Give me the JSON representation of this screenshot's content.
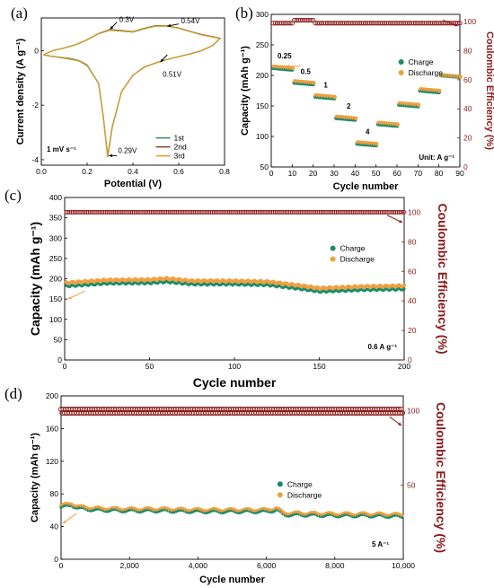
{
  "colors": {
    "ce": "#8b1a1a",
    "charge": "#1a8a6a",
    "discharge": "#f0a040",
    "cv1": "#3a8a5a",
    "cv2": "#8b3a2a",
    "cv3": "#d4a020"
  },
  "chart_data": [
    {
      "type": "line",
      "panel_label": "(a)",
      "xlabel": "Potential (V)",
      "ylabel": "Current density (A g⁻¹)",
      "xlim": [
        0.0,
        0.8
      ],
      "ylim": [
        -4.2,
        1.2
      ],
      "xticks": [
        "0.0",
        "0.2",
        "0.4",
        "0.6",
        "0.8"
      ],
      "yticks": [
        "-4",
        "-2",
        "0"
      ],
      "annotations": [
        "0.3V",
        "0.54V",
        "0.51V",
        "0.29V"
      ],
      "note": "1 mV s⁻¹",
      "series": [
        {
          "name": "1st",
          "x": [
            0.01,
            0.05,
            0.1,
            0.15,
            0.2,
            0.25,
            0.3,
            0.35,
            0.4,
            0.45,
            0.5,
            0.55,
            0.6,
            0.65,
            0.7,
            0.75,
            0.78,
            0.75,
            0.7,
            0.65,
            0.6,
            0.55,
            0.51,
            0.45,
            0.4,
            0.35,
            0.31,
            0.29,
            0.27,
            0.25,
            0.2,
            0.17,
            0.15,
            0.12,
            0.08,
            0.04,
            0.01
          ],
          "y": [
            -0.15,
            0.0,
            0.1,
            0.22,
            0.4,
            0.62,
            0.75,
            0.72,
            0.68,
            0.8,
            0.9,
            0.9,
            0.82,
            0.7,
            0.58,
            0.5,
            0.45,
            0.2,
            0.0,
            -0.12,
            -0.22,
            -0.32,
            -0.42,
            -0.6,
            -0.9,
            -1.5,
            -2.8,
            -3.9,
            -2.4,
            -1.2,
            -0.55,
            -0.4,
            -0.35,
            -0.3,
            -0.25,
            -0.2,
            -0.15
          ]
        },
        {
          "name": "2nd",
          "x": [
            0.01,
            0.05,
            0.1,
            0.15,
            0.2,
            0.25,
            0.3,
            0.35,
            0.4,
            0.45,
            0.5,
            0.55,
            0.6,
            0.65,
            0.7,
            0.75,
            0.78,
            0.75,
            0.7,
            0.65,
            0.6,
            0.55,
            0.51,
            0.45,
            0.4,
            0.35,
            0.31,
            0.29,
            0.27,
            0.25,
            0.2,
            0.17,
            0.15,
            0.12,
            0.08,
            0.04,
            0.01
          ],
          "y": [
            -0.15,
            0.0,
            0.1,
            0.22,
            0.4,
            0.63,
            0.78,
            0.74,
            0.7,
            0.82,
            0.92,
            0.91,
            0.83,
            0.71,
            0.59,
            0.51,
            0.46,
            0.2,
            0.0,
            -0.12,
            -0.22,
            -0.32,
            -0.42,
            -0.6,
            -0.9,
            -1.5,
            -2.8,
            -3.85,
            -2.4,
            -1.2,
            -0.52,
            -0.38,
            -0.33,
            -0.28,
            -0.24,
            -0.2,
            -0.15
          ]
        },
        {
          "name": "3rd",
          "x": [
            0.01,
            0.05,
            0.1,
            0.15,
            0.2,
            0.25,
            0.3,
            0.35,
            0.4,
            0.45,
            0.5,
            0.55,
            0.6,
            0.65,
            0.7,
            0.75,
            0.78,
            0.75,
            0.7,
            0.65,
            0.6,
            0.55,
            0.51,
            0.45,
            0.4,
            0.35,
            0.31,
            0.29,
            0.27,
            0.25,
            0.2,
            0.17,
            0.15,
            0.12,
            0.08,
            0.04,
            0.01
          ],
          "y": [
            -0.15,
            0.0,
            0.1,
            0.22,
            0.4,
            0.62,
            0.76,
            0.73,
            0.69,
            0.81,
            0.91,
            0.9,
            0.82,
            0.7,
            0.58,
            0.5,
            0.45,
            0.2,
            0.0,
            -0.12,
            -0.22,
            -0.32,
            -0.42,
            -0.6,
            -0.9,
            -1.5,
            -2.8,
            -3.88,
            -2.4,
            -1.2,
            -0.53,
            -0.39,
            -0.34,
            -0.29,
            -0.24,
            -0.2,
            -0.15
          ]
        }
      ]
    },
    {
      "type": "scatter",
      "panel_label": "(b)",
      "xlabel": "Cycle number",
      "ylabel": "Capacity (mAh g⁻¹)",
      "ylabel_right": "Coulombic Efficiency (%)",
      "xlim": [
        0,
        90
      ],
      "ylim": [
        50,
        300
      ],
      "ylim_right": [
        0,
        105
      ],
      "xticks": [
        "0",
        "10",
        "20",
        "30",
        "40",
        "50",
        "60",
        "70",
        "80",
        "90"
      ],
      "yticks": [
        "50",
        "100",
        "150",
        "200",
        "250",
        "300"
      ],
      "yticks_right": [
        "0",
        "20",
        "40",
        "60",
        "80",
        "100"
      ],
      "rate_labels": [
        "0.25",
        "0.5",
        "1",
        "2",
        "4"
      ],
      "note": "Unit: A g⁻¹",
      "legend": [
        "Charge",
        "Discharge"
      ],
      "groups": [
        {
          "x0": 1,
          "x1": 10,
          "charge": 212,
          "discharge": 213
        },
        {
          "x0": 11,
          "x1": 20,
          "charge": 188,
          "discharge": 189
        },
        {
          "x0": 21,
          "x1": 30,
          "charge": 165,
          "discharge": 166
        },
        {
          "x0": 31,
          "x1": 40,
          "charge": 130,
          "discharge": 131
        },
        {
          "x0": 41,
          "x1": 50,
          "charge": 88,
          "discharge": 89
        },
        {
          "x0": 51,
          "x1": 60,
          "charge": 120,
          "discharge": 121
        },
        {
          "x0": 61,
          "x1": 70,
          "charge": 152,
          "discharge": 153
        },
        {
          "x0": 71,
          "x1": 80,
          "charge": 175,
          "discharge": 176
        },
        {
          "x0": 81,
          "x1": 90,
          "charge": 200,
          "discharge": 199
        }
      ],
      "ce_value": 99
    },
    {
      "type": "scatter",
      "panel_label": "(c)",
      "xlabel": "Cycle number",
      "ylabel": "Capacity (mAh g⁻¹)",
      "ylabel_right": "Coulombic Efficiency (%)",
      "xlim": [
        0,
        200
      ],
      "ylim": [
        0,
        400
      ],
      "ylim_right": [
        0,
        110
      ],
      "xticks": [
        "0",
        "50",
        "100",
        "150",
        "200"
      ],
      "yticks": [
        "0",
        "50",
        "100",
        "150",
        "200",
        "250",
        "300",
        "350",
        "400"
      ],
      "yticks_right": [
        "0",
        "20",
        "40",
        "60",
        "80",
        "100"
      ],
      "note": "0.6 A g⁻¹",
      "legend": [
        "Charge",
        "Discharge"
      ],
      "capacity_x": [
        0,
        25,
        50,
        60,
        75,
        100,
        120,
        140,
        150,
        175,
        200
      ],
      "capacity_y": [
        185,
        192,
        193,
        196,
        190,
        190,
        188,
        178,
        172,
        176,
        178
      ],
      "ce_value": 100
    },
    {
      "type": "scatter",
      "panel_label": "(d)",
      "xlabel": "Cycle number",
      "ylabel": "Capacity (mAh g⁻¹)",
      "ylabel_right": "Coulombic Efficiency (%)",
      "xlim": [
        0,
        10000
      ],
      "ylim": [
        0,
        200
      ],
      "ylim_right": [
        0,
        110
      ],
      "xticks": [
        "0",
        "2,000",
        "4,000",
        "6,000",
        "8,000",
        "10,000"
      ],
      "yticks": [
        "0",
        "40",
        "80",
        "120",
        "160",
        "200"
      ],
      "yticks_right": [
        "50",
        "100"
      ],
      "note": "5 A⁻¹",
      "legend": [
        "Charge",
        "Discharge"
      ],
      "capacity_x": [
        0,
        300,
        500,
        1000,
        2000,
        3000,
        4000,
        5000,
        6000,
        6300,
        6500,
        7000,
        8000,
        9000,
        10000
      ],
      "capacity_y": [
        65,
        68,
        64,
        62,
        61,
        61,
        60,
        60,
        60,
        62,
        56,
        56,
        55,
        55,
        54
      ],
      "ce_value": 100
    }
  ]
}
